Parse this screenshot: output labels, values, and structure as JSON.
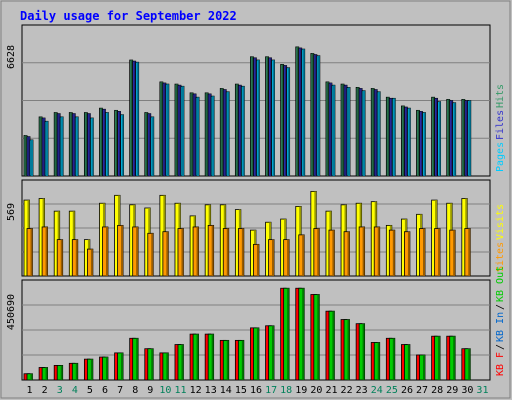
{
  "chart_data": {
    "type": "bar",
    "title": "Daily usage for September 2022",
    "days": [
      "1",
      "2",
      "3",
      "4",
      "5",
      "6",
      "7",
      "8",
      "9",
      "10",
      "11",
      "12",
      "13",
      "14",
      "15",
      "16",
      "17",
      "18",
      "19",
      "20",
      "21",
      "22",
      "23",
      "24",
      "25",
      "26",
      "27",
      "28",
      "29",
      "30",
      "31"
    ],
    "weekend_days": [
      "3",
      "4",
      "10",
      "11",
      "17",
      "18",
      "24",
      "25",
      "31"
    ],
    "panels": [
      {
        "id": "top",
        "ymax_label": "6628",
        "ymax": 6628,
        "series": [
          {
            "name": "Hits",
            "color": "#339966",
            "values": [
              1850,
              2700,
              2900,
              2900,
              2900,
              3100,
              3000,
              5300,
              2900,
              4300,
              4200,
              3800,
              3800,
              4000,
              4200,
              5450,
              5450,
              5100,
              5900,
              5600,
              4300,
              4200,
              4050,
              4000,
              3600,
              3200,
              3000,
              3600,
              3500,
              3500,
              0
            ]
          },
          {
            "name": "Files",
            "color": "#3333cc",
            "values": [
              1800,
              2650,
              2850,
              2850,
              2850,
              3050,
              2950,
              5250,
              2850,
              4250,
              4150,
              3750,
              3750,
              3950,
              4150,
              5400,
              5400,
              5050,
              5850,
              5550,
              4250,
              4150,
              4000,
              3950,
              3550,
              3150,
              2950,
              3550,
              3450,
              3450,
              0
            ]
          },
          {
            "name": "Pages",
            "color": "#00ccff",
            "values": [
              1650,
              2500,
              2700,
              2700,
              2650,
              2900,
              2800,
              5200,
              2700,
              4200,
              4100,
              3600,
              3650,
              3850,
              4100,
              5300,
              5300,
              4950,
              5800,
              5500,
              4150,
              4050,
              3900,
              3850,
              3550,
              3100,
              2900,
              3400,
              3350,
              3450,
              0
            ]
          }
        ],
        "legend": [
          "Pages",
          "Files",
          "Hits"
        ]
      },
      {
        "id": "middle",
        "ymax_label": "569",
        "ymax": 569,
        "series": [
          {
            "name": "Visits",
            "color": "#ffff00",
            "values": [
              480,
              490,
              410,
              410,
              230,
              460,
              510,
              450,
              430,
              510,
              460,
              380,
              450,
              450,
              420,
              290,
              340,
              360,
              440,
              535,
              410,
              450,
              460,
              470,
              320,
              360,
              390,
              480,
              460,
              490,
              0
            ]
          },
          {
            "name": "Sites",
            "color": "#ff9900",
            "values": [
              300,
              310,
              230,
              230,
              170,
              310,
              320,
              310,
              270,
              280,
              300,
              310,
              320,
              300,
              300,
              200,
              230,
              230,
              260,
              300,
              290,
              280,
              310,
              310,
              290,
              280,
              300,
              300,
              290,
              300,
              0
            ]
          }
        ],
        "legend": [
          "Sites",
          "Visits"
        ]
      },
      {
        "id": "bottom",
        "ymax_label": "450690",
        "ymax": 450690,
        "series": [
          {
            "name": "KB F",
            "color": "#ff0000",
            "values": [
              30000,
              60000,
              70000,
              80000,
              100000,
              110000,
              130000,
              200000,
              150000,
              130000,
              170000,
              220000,
              220000,
              190000,
              190000,
              250000,
              260000,
              440000,
              440000,
              410000,
              330000,
              290000,
              270000,
              180000,
              200000,
              170000,
              120000,
              210000,
              210000,
              150000,
              0
            ]
          },
          {
            "name": "KB In",
            "color": "#0066cc",
            "values": [
              0,
              0,
              0,
              0,
              0,
              0,
              0,
              0,
              0,
              0,
              0,
              0,
              0,
              0,
              0,
              0,
              0,
              0,
              0,
              0,
              0,
              0,
              0,
              0,
              0,
              0,
              0,
              0,
              0,
              0,
              0
            ]
          },
          {
            "name": "KB Out",
            "color": "#00cc00",
            "values": [
              30000,
              60000,
              70000,
              80000,
              100000,
              110000,
              130000,
              200000,
              150000,
              130000,
              170000,
              220000,
              220000,
              190000,
              190000,
              250000,
              260000,
              440000,
              440000,
              410000,
              330000,
              290000,
              270000,
              180000,
              200000,
              170000,
              120000,
              210000,
              210000,
              150000,
              0
            ]
          }
        ],
        "legend": [
          "KB F",
          "/",
          "KB In",
          "/",
          "KB Out"
        ]
      }
    ]
  },
  "colors": {
    "background": "#c0c0c0",
    "title": "#0000ff",
    "weekday_label": "#000000",
    "weekend_label": "#00805a",
    "legend_slash": "#000000"
  }
}
